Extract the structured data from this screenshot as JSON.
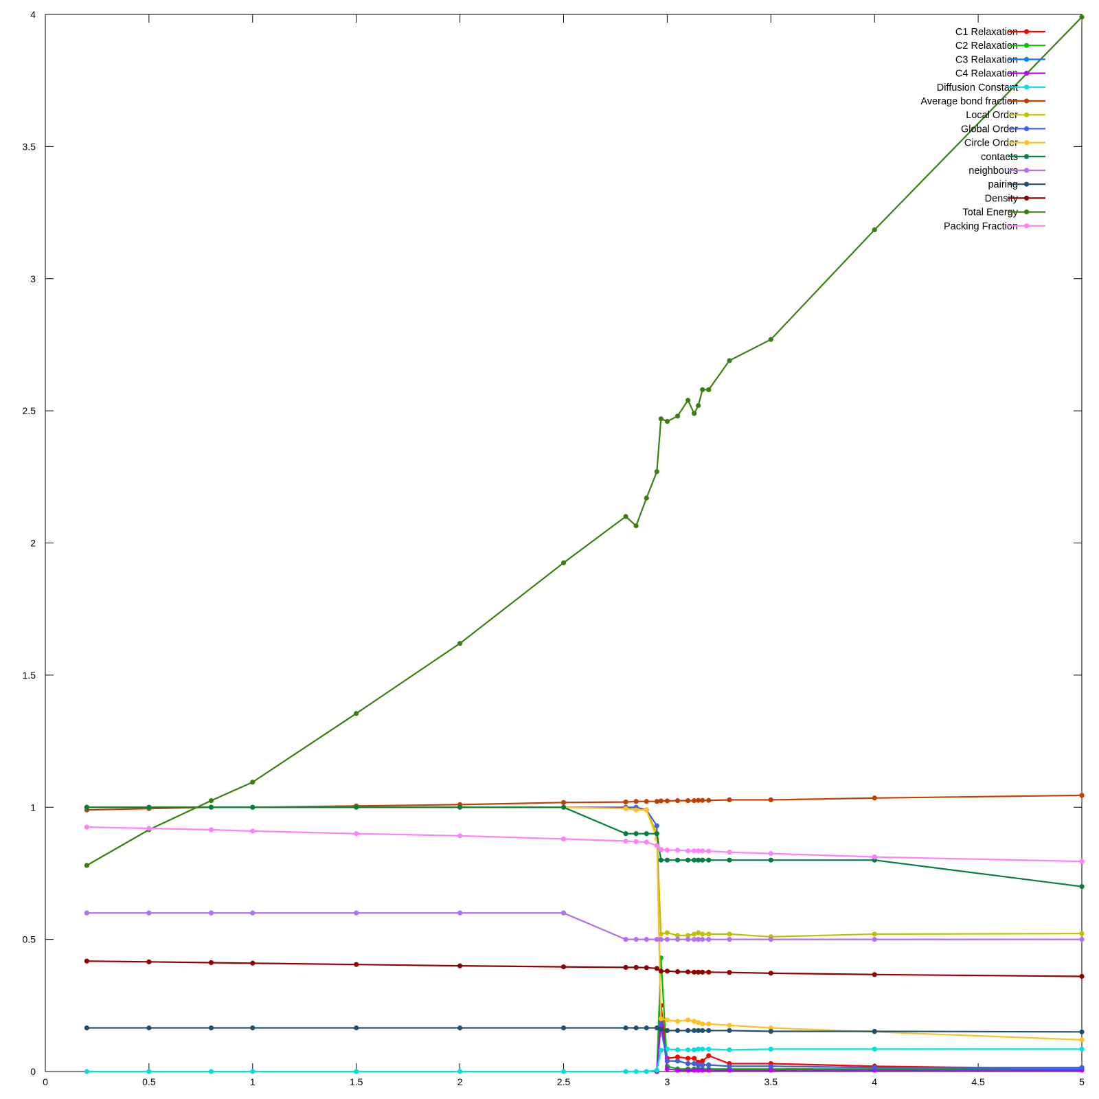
{
  "chart_data": {
    "type": "line",
    "title": "",
    "xlabel": "",
    "ylabel": "",
    "xlim": [
      0,
      5
    ],
    "ylim": [
      0,
      4
    ],
    "grid": false,
    "legend_position": "top-right",
    "x_ticks": [
      "0",
      "0.5",
      "1",
      "1.5",
      "2",
      "2.5",
      "3",
      "3.5",
      "4",
      "4.5",
      "5"
    ],
    "y_ticks": [
      "0",
      "0.5",
      "1",
      "1.5",
      "2",
      "2.5",
      "3",
      "3.5",
      "4"
    ],
    "series": [
      {
        "name": "C1 Relaxation",
        "color": "#ff0000",
        "x": [
          2.95,
          2.97,
          3.0,
          3.05,
          3.1,
          3.13,
          3.15,
          3.17,
          3.2,
          3.3,
          3.5,
          4.0,
          5.0
        ],
        "y": [
          0.0,
          0.25,
          0.05,
          0.055,
          0.05,
          0.05,
          0.035,
          0.04,
          0.06,
          0.03,
          0.03,
          0.02,
          0.01
        ]
      },
      {
        "name": "C2 Relaxation",
        "color": "#00c000",
        "x": [
          2.95,
          2.97,
          3.0,
          3.05,
          3.1,
          3.13,
          3.15,
          3.17,
          3.2,
          3.3,
          3.5,
          4.0,
          5.0
        ],
        "y": [
          0.0,
          0.43,
          0.02,
          0.01,
          0.01,
          0.01,
          0.01,
          0.01,
          0.01,
          0.01,
          0.01,
          0.01,
          0.01
        ]
      },
      {
        "name": "C3 Relaxation",
        "color": "#0080ff",
        "x": [
          2.95,
          2.97,
          3.0,
          3.05,
          3.1,
          3.13,
          3.15,
          3.17,
          3.2,
          3.3,
          3.5,
          4.0,
          5.0
        ],
        "y": [
          0.0,
          0.18,
          0.04,
          0.04,
          0.03,
          0.03,
          0.025,
          0.025,
          0.025,
          0.02,
          0.02,
          0.015,
          0.01
        ]
      },
      {
        "name": "C4 Relaxation",
        "color": "#c000ff",
        "x": [
          2.95,
          2.97,
          3.0,
          3.05,
          3.1,
          3.13,
          3.15,
          3.17,
          3.2,
          3.3,
          3.5,
          4.0,
          5.0
        ],
        "y": [
          0.0,
          0.2,
          0.01,
          0.005,
          0.005,
          0.005,
          0.005,
          0.005,
          0.005,
          0.005,
          0.005,
          0.005,
          0.005
        ]
      },
      {
        "name": "Diffusion Constant",
        "color": "#00e0e0",
        "x": [
          0.2,
          0.5,
          0.8,
          1.0,
          1.5,
          2.0,
          2.5,
          2.8,
          2.85,
          2.9,
          2.95,
          2.97,
          3.0,
          3.05,
          3.1,
          3.13,
          3.15,
          3.17,
          3.2,
          3.3,
          3.5,
          4.0,
          5.0
        ],
        "y": [
          0,
          0,
          0,
          0,
          0,
          0,
          0,
          0,
          0,
          0,
          0.005,
          0.08,
          0.085,
          0.082,
          0.082,
          0.082,
          0.085,
          0.085,
          0.085,
          0.082,
          0.085,
          0.085,
          0.085
        ]
      },
      {
        "name": "Average bond fraction",
        "color": "#c04000",
        "x": [
          0.2,
          0.5,
          0.8,
          1.0,
          1.5,
          2.0,
          2.5,
          2.8,
          2.85,
          2.9,
          2.95,
          2.97,
          3.0,
          3.05,
          3.1,
          3.13,
          3.15,
          3.17,
          3.2,
          3.3,
          3.5,
          4.0,
          5.0
        ],
        "y": [
          0.99,
          0.995,
          1.0,
          1.0,
          1.005,
          1.01,
          1.018,
          1.02,
          1.022,
          1.022,
          1.022,
          1.024,
          1.024,
          1.025,
          1.025,
          1.025,
          1.026,
          1.026,
          1.026,
          1.028,
          1.028,
          1.035,
          1.045
        ]
      },
      {
        "name": "Local Order",
        "color": "#c0c000",
        "x": [
          0.2,
          0.5,
          0.8,
          1.0,
          1.5,
          2.0,
          2.5,
          2.8,
          2.85,
          2.9,
          2.95,
          2.97,
          3.0,
          3.05,
          3.1,
          3.13,
          3.15,
          3.17,
          3.2,
          3.3,
          3.5,
          4.0,
          5.0
        ],
        "y": [
          1,
          1,
          1,
          1,
          1,
          1,
          1,
          1,
          0.99,
          0.99,
          0.9,
          0.52,
          0.525,
          0.515,
          0.515,
          0.52,
          0.525,
          0.52,
          0.52,
          0.52,
          0.51,
          0.52,
          0.522
        ]
      },
      {
        "name": "Global Order",
        "color": "#4060e0",
        "x": [
          0.2,
          0.5,
          0.8,
          1.0,
          1.5,
          2.0,
          2.5,
          2.8,
          2.85,
          2.9,
          2.95,
          2.97,
          3.0,
          3.05,
          3.1,
          3.13,
          3.15,
          3.17,
          3.2,
          3.3,
          3.5,
          4.0,
          5.0
        ],
        "y": [
          1,
          1,
          1,
          1,
          1,
          1,
          1,
          1,
          1,
          0.99,
          0.93,
          0.16,
          0.04,
          0.04,
          0.03,
          0.03,
          0.025,
          0.025,
          0.025,
          0.02,
          0.02,
          0.015,
          0.015
        ]
      },
      {
        "name": "Circle Order",
        "color": "#ffc020",
        "x": [
          0.2,
          0.5,
          0.8,
          1.0,
          1.5,
          2.0,
          2.5,
          2.8,
          2.85,
          2.9,
          2.95,
          2.97,
          3.0,
          3.05,
          3.1,
          3.13,
          3.15,
          3.17,
          3.2,
          3.3,
          3.5,
          4.0,
          5.0
        ],
        "y": [
          1,
          1,
          1,
          1,
          1,
          1,
          1,
          0.995,
          0.99,
          0.99,
          0.88,
          0.2,
          0.195,
          0.19,
          0.195,
          0.19,
          0.185,
          0.18,
          0.18,
          0.175,
          0.165,
          0.15,
          0.12
        ]
      },
      {
        "name": "contacts",
        "color": "#008040",
        "x": [
          0.2,
          0.5,
          0.8,
          1.0,
          1.5,
          2.0,
          2.5,
          2.8,
          2.85,
          2.9,
          2.95,
          2.97,
          3.0,
          3.05,
          3.1,
          3.13,
          3.15,
          3.17,
          3.2,
          3.3,
          3.5,
          4.0,
          5.0
        ],
        "y": [
          1,
          1,
          1,
          1,
          1,
          1,
          1,
          0.9,
          0.9,
          0.9,
          0.9,
          0.8,
          0.8,
          0.8,
          0.8,
          0.8,
          0.8,
          0.8,
          0.8,
          0.8,
          0.8,
          0.8,
          0.7
        ]
      },
      {
        "name": "neighbours",
        "color": "#b070f0",
        "x": [
          0.2,
          0.5,
          0.8,
          1.0,
          1.5,
          2.0,
          2.5,
          2.8,
          2.85,
          2.9,
          2.95,
          2.97,
          3.0,
          3.05,
          3.1,
          3.13,
          3.15,
          3.17,
          3.2,
          3.3,
          3.5,
          4.0,
          5.0
        ],
        "y": [
          0.6,
          0.6,
          0.6,
          0.6,
          0.6,
          0.6,
          0.6,
          0.5,
          0.5,
          0.5,
          0.5,
          0.5,
          0.5,
          0.5,
          0.5,
          0.5,
          0.5,
          0.5,
          0.5,
          0.5,
          0.5,
          0.5,
          0.5
        ]
      },
      {
        "name": "pairing",
        "color": "#205070",
        "x": [
          0.2,
          0.5,
          0.8,
          1.0,
          1.5,
          2.0,
          2.5,
          2.8,
          2.85,
          2.9,
          2.95,
          2.97,
          3.0,
          3.05,
          3.1,
          3.13,
          3.15,
          3.17,
          3.2,
          3.3,
          3.5,
          4.0,
          5.0
        ],
        "y": [
          0.165,
          0.165,
          0.165,
          0.165,
          0.165,
          0.165,
          0.165,
          0.165,
          0.165,
          0.165,
          0.165,
          0.16,
          0.155,
          0.155,
          0.155,
          0.155,
          0.155,
          0.155,
          0.155,
          0.155,
          0.152,
          0.152,
          0.15
        ]
      },
      {
        "name": "Density",
        "color": "#900000",
        "x": [
          0.2,
          0.5,
          0.8,
          1.0,
          1.5,
          2.0,
          2.5,
          2.8,
          2.85,
          2.9,
          2.95,
          2.97,
          3.0,
          3.05,
          3.1,
          3.13,
          3.15,
          3.17,
          3.2,
          3.3,
          3.5,
          4.0,
          5.0
        ],
        "y": [
          0.418,
          0.415,
          0.412,
          0.41,
          0.405,
          0.4,
          0.396,
          0.394,
          0.394,
          0.393,
          0.39,
          0.38,
          0.38,
          0.378,
          0.377,
          0.376,
          0.376,
          0.376,
          0.376,
          0.375,
          0.372,
          0.367,
          0.36
        ]
      },
      {
        "name": "Total Energy",
        "color": "#3a8010",
        "x": [
          0.2,
          0.5,
          0.8,
          1.0,
          1.5,
          2.0,
          2.5,
          2.8,
          2.85,
          2.9,
          2.95,
          2.97,
          3.0,
          3.05,
          3.1,
          3.13,
          3.15,
          3.17,
          3.2,
          3.3,
          3.5,
          4.0,
          5.0
        ],
        "y": [
          0.78,
          0.915,
          1.025,
          1.095,
          1.355,
          1.62,
          1.925,
          2.1,
          2.065,
          2.17,
          2.27,
          2.47,
          2.46,
          2.48,
          2.54,
          2.49,
          2.52,
          2.58,
          2.58,
          2.69,
          2.77,
          3.185,
          3.99
        ]
      },
      {
        "name": "Packing Fraction",
        "color": "#ff80ff",
        "x": [
          0.2,
          0.5,
          0.8,
          1.0,
          1.5,
          2.0,
          2.5,
          2.8,
          2.85,
          2.9,
          2.95,
          2.97,
          3.0,
          3.05,
          3.1,
          3.13,
          3.15,
          3.17,
          3.2,
          3.3,
          3.5,
          4.0,
          5.0
        ],
        "y": [
          0.925,
          0.92,
          0.915,
          0.91,
          0.9,
          0.892,
          0.88,
          0.872,
          0.87,
          0.868,
          0.855,
          0.84,
          0.838,
          0.838,
          0.835,
          0.835,
          0.835,
          0.835,
          0.834,
          0.83,
          0.825,
          0.812,
          0.795
        ]
      }
    ]
  }
}
